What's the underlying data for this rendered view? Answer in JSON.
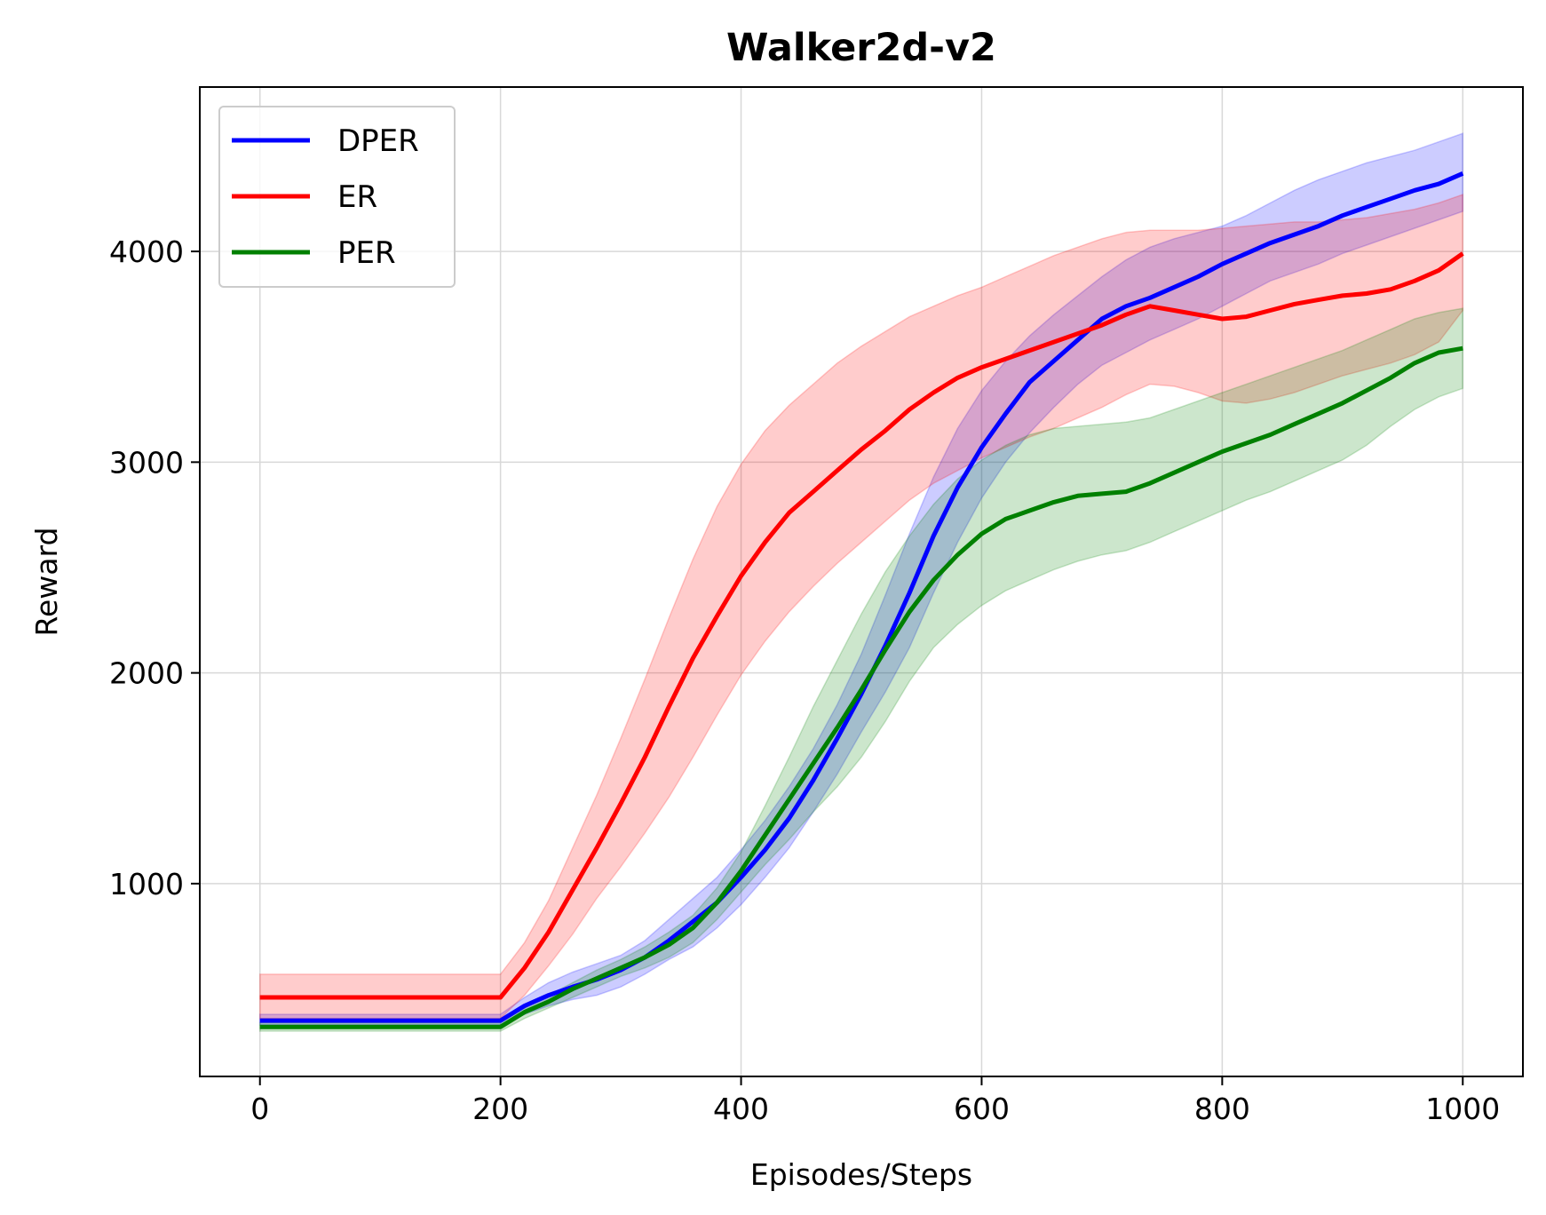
{
  "chart_data": {
    "type": "line",
    "title": "Walker2d-v2",
    "xlabel": "Episodes/Steps",
    "ylabel": "Reward",
    "xlim": [
      -50,
      1050
    ],
    "ylim": [
      85,
      4780
    ],
    "xticks": [
      0,
      200,
      400,
      600,
      800,
      1000
    ],
    "yticks": [
      1000,
      2000,
      3000,
      4000
    ],
    "grid": true,
    "legend": "upper left",
    "series": [
      {
        "name": "DPER",
        "color": "#0000ff",
        "x": [
          0,
          200,
          220,
          240,
          260,
          280,
          300,
          320,
          340,
          360,
          380,
          400,
          420,
          440,
          460,
          480,
          500,
          520,
          540,
          560,
          580,
          600,
          620,
          640,
          660,
          680,
          700,
          720,
          740,
          760,
          780,
          800,
          820,
          840,
          860,
          880,
          900,
          920,
          940,
          960,
          980,
          1000
        ],
        "y": [
          350,
          350,
          420,
          470,
          510,
          545,
          590,
          650,
          730,
          820,
          910,
          1030,
          1160,
          1310,
          1490,
          1690,
          1900,
          2130,
          2380,
          2650,
          2880,
          3070,
          3230,
          3380,
          3480,
          3580,
          3680,
          3740,
          3780,
          3830,
          3880,
          3940,
          3990,
          4040,
          4080,
          4120,
          4170,
          4210,
          4250,
          4290,
          4320,
          4370
        ],
        "upper": [
          380,
          380,
          460,
          530,
          580,
          620,
          660,
          730,
          830,
          930,
          1030,
          1160,
          1300,
          1460,
          1640,
          1850,
          2090,
          2370,
          2660,
          2930,
          3160,
          3340,
          3480,
          3600,
          3700,
          3790,
          3880,
          3960,
          4020,
          4060,
          4090,
          4120,
          4170,
          4230,
          4290,
          4340,
          4380,
          4420,
          4450,
          4480,
          4520,
          4560
        ],
        "lower": [
          330,
          330,
          380,
          420,
          450,
          470,
          510,
          570,
          640,
          700,
          790,
          900,
          1030,
          1170,
          1340,
          1520,
          1720,
          1910,
          2120,
          2380,
          2620,
          2830,
          3000,
          3140,
          3260,
          3370,
          3460,
          3520,
          3580,
          3630,
          3680,
          3740,
          3800,
          3860,
          3900,
          3940,
          3990,
          4030,
          4070,
          4110,
          4150,
          4190
        ]
      },
      {
        "name": "ER",
        "color": "#ff0000",
        "x": [
          0,
          200,
          220,
          240,
          260,
          280,
          300,
          320,
          340,
          360,
          380,
          400,
          420,
          440,
          460,
          480,
          500,
          520,
          540,
          560,
          580,
          600,
          620,
          640,
          660,
          680,
          700,
          720,
          740,
          760,
          780,
          800,
          820,
          840,
          860,
          880,
          900,
          920,
          940,
          960,
          980,
          1000
        ],
        "y": [
          460,
          460,
          600,
          770,
          970,
          1170,
          1380,
          1600,
          1840,
          2070,
          2270,
          2460,
          2620,
          2760,
          2860,
          2960,
          3060,
          3150,
          3250,
          3330,
          3400,
          3450,
          3490,
          3530,
          3570,
          3610,
          3650,
          3700,
          3740,
          3720,
          3700,
          3680,
          3690,
          3720,
          3750,
          3770,
          3790,
          3800,
          3820,
          3860,
          3910,
          3990
        ],
        "upper": [
          570,
          570,
          720,
          920,
          1170,
          1420,
          1690,
          1970,
          2260,
          2540,
          2790,
          2990,
          3150,
          3270,
          3370,
          3470,
          3550,
          3620,
          3690,
          3740,
          3790,
          3830,
          3880,
          3930,
          3980,
          4020,
          4060,
          4090,
          4100,
          4100,
          4100,
          4110,
          4120,
          4130,
          4140,
          4140,
          4150,
          4160,
          4180,
          4200,
          4230,
          4270
        ],
        "lower": [
          360,
          360,
          470,
          610,
          760,
          930,
          1080,
          1240,
          1410,
          1600,
          1800,
          1990,
          2150,
          2290,
          2410,
          2520,
          2620,
          2720,
          2820,
          2900,
          2960,
          3020,
          3070,
          3120,
          3160,
          3210,
          3260,
          3320,
          3370,
          3360,
          3330,
          3290,
          3280,
          3300,
          3330,
          3370,
          3410,
          3440,
          3470,
          3510,
          3570,
          3720
        ]
      },
      {
        "name": "PER",
        "color": "#008000",
        "x": [
          0,
          200,
          220,
          240,
          260,
          280,
          300,
          320,
          340,
          360,
          380,
          400,
          420,
          440,
          460,
          480,
          500,
          520,
          540,
          560,
          580,
          600,
          620,
          640,
          660,
          680,
          700,
          720,
          740,
          760,
          780,
          800,
          820,
          840,
          860,
          880,
          900,
          920,
          940,
          960,
          980,
          1000
        ],
        "y": [
          320,
          320,
          390,
          440,
          500,
          550,
          600,
          650,
          710,
          790,
          910,
          1060,
          1230,
          1400,
          1570,
          1740,
          1920,
          2110,
          2290,
          2440,
          2560,
          2660,
          2730,
          2770,
          2810,
          2840,
          2850,
          2860,
          2900,
          2950,
          3000,
          3050,
          3090,
          3130,
          3180,
          3230,
          3280,
          3340,
          3400,
          3470,
          3520,
          3540
        ],
        "upper": [
          340,
          340,
          410,
          470,
          530,
          590,
          640,
          700,
          770,
          850,
          980,
          1150,
          1370,
          1600,
          1840,
          2060,
          2280,
          2480,
          2650,
          2800,
          2920,
          3010,
          3080,
          3130,
          3160,
          3170,
          3180,
          3190,
          3210,
          3250,
          3290,
          3330,
          3370,
          3410,
          3450,
          3490,
          3530,
          3580,
          3630,
          3680,
          3710,
          3730
        ],
        "lower": [
          300,
          300,
          360,
          410,
          460,
          510,
          560,
          600,
          650,
          720,
          830,
          960,
          1090,
          1210,
          1340,
          1460,
          1600,
          1770,
          1960,
          2120,
          2230,
          2320,
          2390,
          2440,
          2490,
          2530,
          2560,
          2580,
          2620,
          2670,
          2720,
          2770,
          2820,
          2860,
          2910,
          2960,
          3010,
          3080,
          3170,
          3250,
          3310,
          3350
        ]
      }
    ]
  }
}
